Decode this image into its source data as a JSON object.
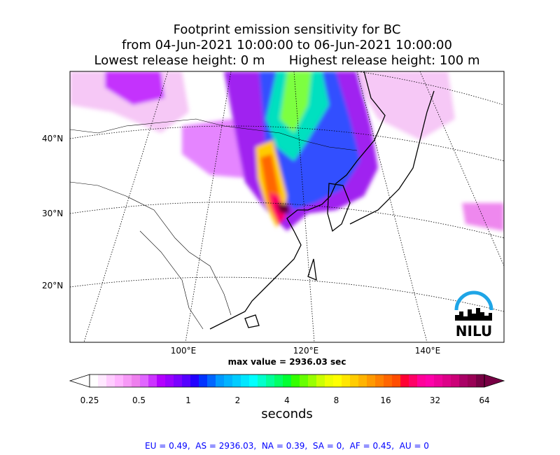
{
  "chart_data": {
    "type": "heatmap",
    "title_lines": [
      "Footprint emission sensitivity for BC",
      "from 04-Jun-2021 10:00:00 to 06-Jun-2021 10:00:00",
      "Lowest release height: 0 m      Highest release height: 100 m"
    ],
    "lat_labels": [
      "40°N",
      "30°N",
      "20°N"
    ],
    "lon_labels": [
      "100°E",
      "120°E",
      "140°E"
    ],
    "max_value_text": "max value = 2936.03 sec",
    "colorbar": {
      "scale": "log",
      "ticks": [
        "0.25",
        "0.5",
        "1",
        "2",
        "4",
        "8",
        "16",
        "32",
        "64"
      ],
      "label": "seconds",
      "colors": [
        "#ffffff",
        "#ffe8ff",
        "#ffccff",
        "#ffb3ff",
        "#f799f7",
        "#ee80ee",
        "#e066ff",
        "#cc33ff",
        "#b300ff",
        "#9900ff",
        "#7a00ff",
        "#5500ff",
        "#2200ff",
        "#0033ff",
        "#0066ff",
        "#0099ff",
        "#00b3ff",
        "#00ccff",
        "#00e6ff",
        "#00ffff",
        "#00ffcc",
        "#00ff99",
        "#00ff66",
        "#00ff33",
        "#33ff00",
        "#66ff00",
        "#99ff00",
        "#ccff00",
        "#eeff00",
        "#ffff00",
        "#ffe600",
        "#ffcc00",
        "#ffb300",
        "#ff9900",
        "#ff8000",
        "#ff6600",
        "#ff4d00",
        "#ff0033",
        "#ff0066",
        "#ff0099",
        "#ff00aa",
        "#ee0099",
        "#dd0088",
        "#cc0077",
        "#aa0066",
        "#990055",
        "#770044"
      ]
    }
  },
  "logo_text": "NILU",
  "footer_text": "EU = 0.49,  AS = 2936.03,  NA = 0.39,  SA = 0,  AF = 0.45,  AU = 0"
}
